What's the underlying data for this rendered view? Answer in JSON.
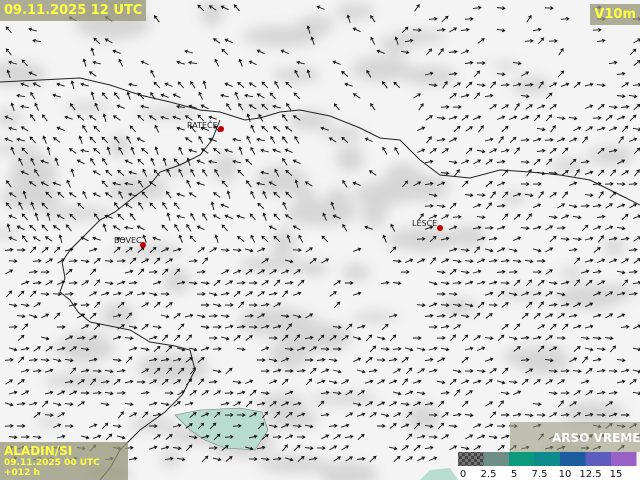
{
  "header": {
    "valid_time": "09.11.2025 12 UTC",
    "field": "V10m"
  },
  "footer": {
    "model": "ALADIN/SI",
    "run": "09.11.2025 00 UTC +012 h",
    "logo": "ARSO VREME"
  },
  "places": [
    {
      "label": "RATEČE"
    },
    {
      "label": "BOVEC"
    },
    {
      "label": "LESCE"
    }
  ],
  "legend": {
    "labels": [
      "0",
      "2.5",
      "5",
      "7.5",
      "10",
      "12.5",
      "15"
    ],
    "colors": [
      "#5a5a5a",
      "#6f8f86",
      "#0b9a7c",
      "#0d8a8c",
      "#1c5c9e",
      "#5f5cc0",
      "#9a62c6"
    ]
  }
}
